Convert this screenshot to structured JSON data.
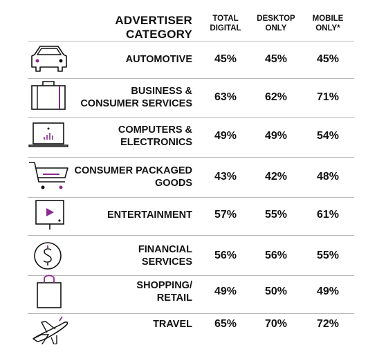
{
  "header": {
    "category_label": "ADVERTISER CATEGORY",
    "col_total": [
      "TOTAL",
      "DIGITAL"
    ],
    "col_desktop": [
      "DESKTOP",
      "ONLY"
    ],
    "col_mobile": [
      "MOBILE",
      "ONLY*"
    ]
  },
  "colors": {
    "accent": "#8b2a8f",
    "line": "#b9b9b9",
    "text": "#111111"
  },
  "rows": [
    {
      "icon": "car-icon",
      "label": [
        "AUTOMOTIVE"
      ],
      "total": "45%",
      "desktop": "45%",
      "mobile": "45%"
    },
    {
      "icon": "briefcase-icon",
      "label": [
        "BUSINESS &",
        "CONSUMER SERVICES"
      ],
      "total": "63%",
      "desktop": "62%",
      "mobile": "71%"
    },
    {
      "icon": "laptop-icon",
      "label": [
        "COMPUTERS &",
        "ELECTRONICS"
      ],
      "total": "49%",
      "desktop": "49%",
      "mobile": "54%"
    },
    {
      "icon": "shopping-cart-icon",
      "label": [
        "CONSUMER PACKAGED",
        "GOODS"
      ],
      "total": "43%",
      "desktop": "42%",
      "mobile": "48%"
    },
    {
      "icon": "tv-play-icon",
      "label": [
        "ENTERTAINMENT"
      ],
      "total": "57%",
      "desktop": "55%",
      "mobile": "61%"
    },
    {
      "icon": "dollar-coin-icon",
      "label": [
        "FINANCIAL",
        "SERVICES"
      ],
      "total": "56%",
      "desktop": "56%",
      "mobile": "55%"
    },
    {
      "icon": "shopping-bag-icon",
      "label": [
        "SHOPPING/",
        "RETAIL"
      ],
      "total": "49%",
      "desktop": "50%",
      "mobile": "49%"
    },
    {
      "icon": "airplane-icon",
      "label": [
        "TRAVEL"
      ],
      "total": "65%",
      "desktop": "70%",
      "mobile": "72%"
    }
  ]
}
